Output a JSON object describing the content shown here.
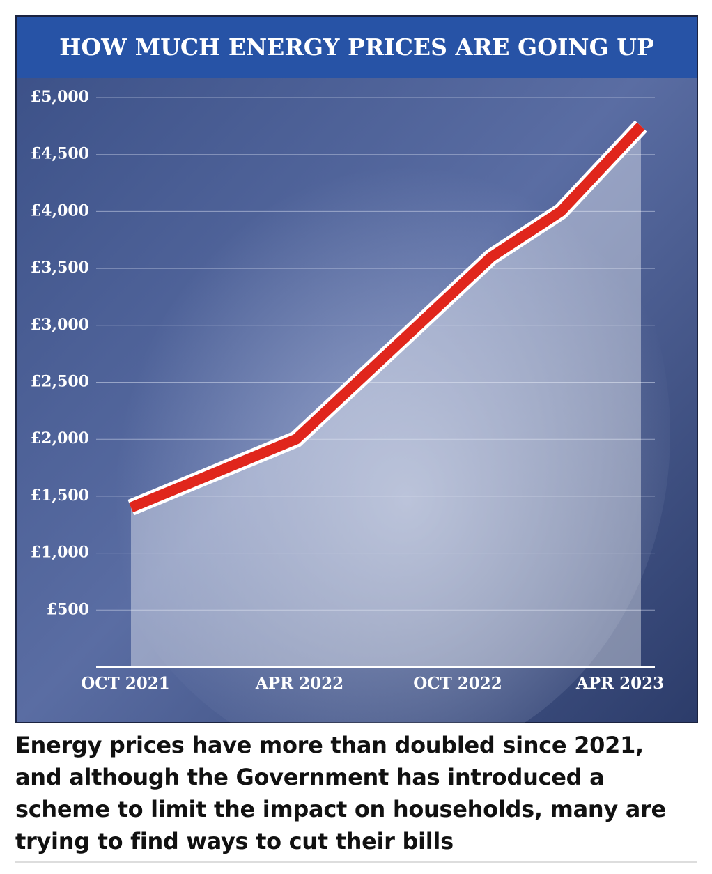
{
  "chart_data": {
    "type": "line",
    "title": "HOW MUCH ENERGY PRICES ARE GOING UP",
    "categories": [
      "OCT 2021",
      "APR 2022",
      "OCT 2022",
      null,
      "APR 2023"
    ],
    "series": [
      {
        "name": null,
        "color": "#e0261c",
        "values": [
          1400,
          2000,
          3600,
          4000,
          4750
        ]
      }
    ],
    "ylim": [
      0,
      5000
    ],
    "yticks": [
      {
        "value": 500,
        "label": "£500"
      },
      {
        "value": 1000,
        "label": "£1,000"
      },
      {
        "value": 1500,
        "label": "£1,500"
      },
      {
        "value": 2000,
        "label": "£2,000"
      },
      {
        "value": 2500,
        "label": "£2,500"
      },
      {
        "value": 3000,
        "label": "£3,000"
      },
      {
        "value": 3500,
        "label": "£3,500"
      },
      {
        "value": 4000,
        "label": "£4,000"
      },
      {
        "value": 4500,
        "label": "£4,500"
      },
      {
        "value": 5000,
        "label": "£5,000"
      }
    ],
    "grid": true
  },
  "caption": "Energy prices have more than doubled since 2021, and although the Government has introduced a scheme to limit the impact on households, many are trying to find ways to cut their bills"
}
